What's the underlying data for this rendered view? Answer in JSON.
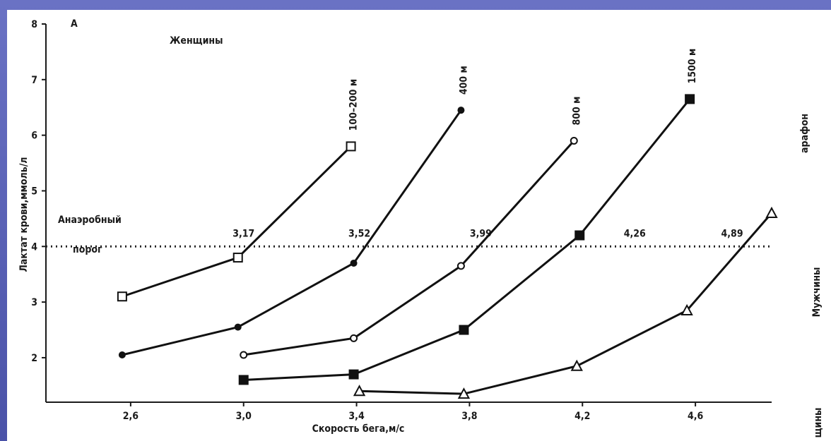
{
  "chart_data": {
    "type": "line",
    "panel_label": "А",
    "title": "Женщины",
    "xlabel": "Скорость бега,м/с",
    "ylabel": "Лактат крови,ммоль/л",
    "xlim": [
      2.3,
      4.87
    ],
    "ylim": [
      1.2,
      8.0
    ],
    "x_ticks": [
      2.6,
      3.0,
      3.4,
      3.8,
      4.2,
      4.6
    ],
    "x_tick_labels": [
      "2,6",
      "3,0",
      "3,4",
      "3,8",
      "4,2",
      "4,6"
    ],
    "y_ticks": [
      2,
      3,
      4,
      5,
      6,
      7,
      8
    ],
    "threshold": {
      "y": 4,
      "label_top": "Анаэробный",
      "label_bottom": "порог",
      "crossings": [
        {
          "x": 3.0,
          "label": "3,17"
        },
        {
          "x": 3.41,
          "label": "3,52"
        },
        {
          "x": 3.84,
          "label": "3,99"
        },
        {
          "x": 4.26,
          "label": "4,26"
        },
        {
          "x": 4.73,
          "label": "4,89"
        }
      ]
    },
    "series": [
      {
        "name": "100–200 м",
        "marker": "square-open",
        "x": [
          2.57,
          2.98,
          3.38
        ],
        "y": [
          3.1,
          3.8,
          5.8
        ]
      },
      {
        "name": "400 м",
        "marker": "circle-filled",
        "x": [
          2.57,
          2.98,
          3.39,
          3.77
        ],
        "y": [
          2.05,
          2.55,
          3.7,
          6.45
        ]
      },
      {
        "name": "800 м",
        "marker": "circle-open",
        "x": [
          3.0,
          3.39,
          3.77,
          4.17
        ],
        "y": [
          2.05,
          2.35,
          3.65,
          5.9
        ]
      },
      {
        "name": "1500 м",
        "marker": "square-filled",
        "x": [
          3.0,
          3.39,
          3.78,
          4.19,
          4.58
        ],
        "y": [
          1.6,
          1.7,
          2.5,
          4.2,
          6.65
        ]
      },
      {
        "name": "Марафон",
        "marker": "triangle-open",
        "x": [
          3.41,
          3.78,
          4.18,
          4.57,
          4.87
        ],
        "y": [
          1.4,
          1.35,
          1.85,
          2.85,
          4.6
        ]
      }
    ],
    "side_labels": {
      "marathon": "арафон",
      "men": "Мужчины",
      "women": "щины"
    }
  }
}
